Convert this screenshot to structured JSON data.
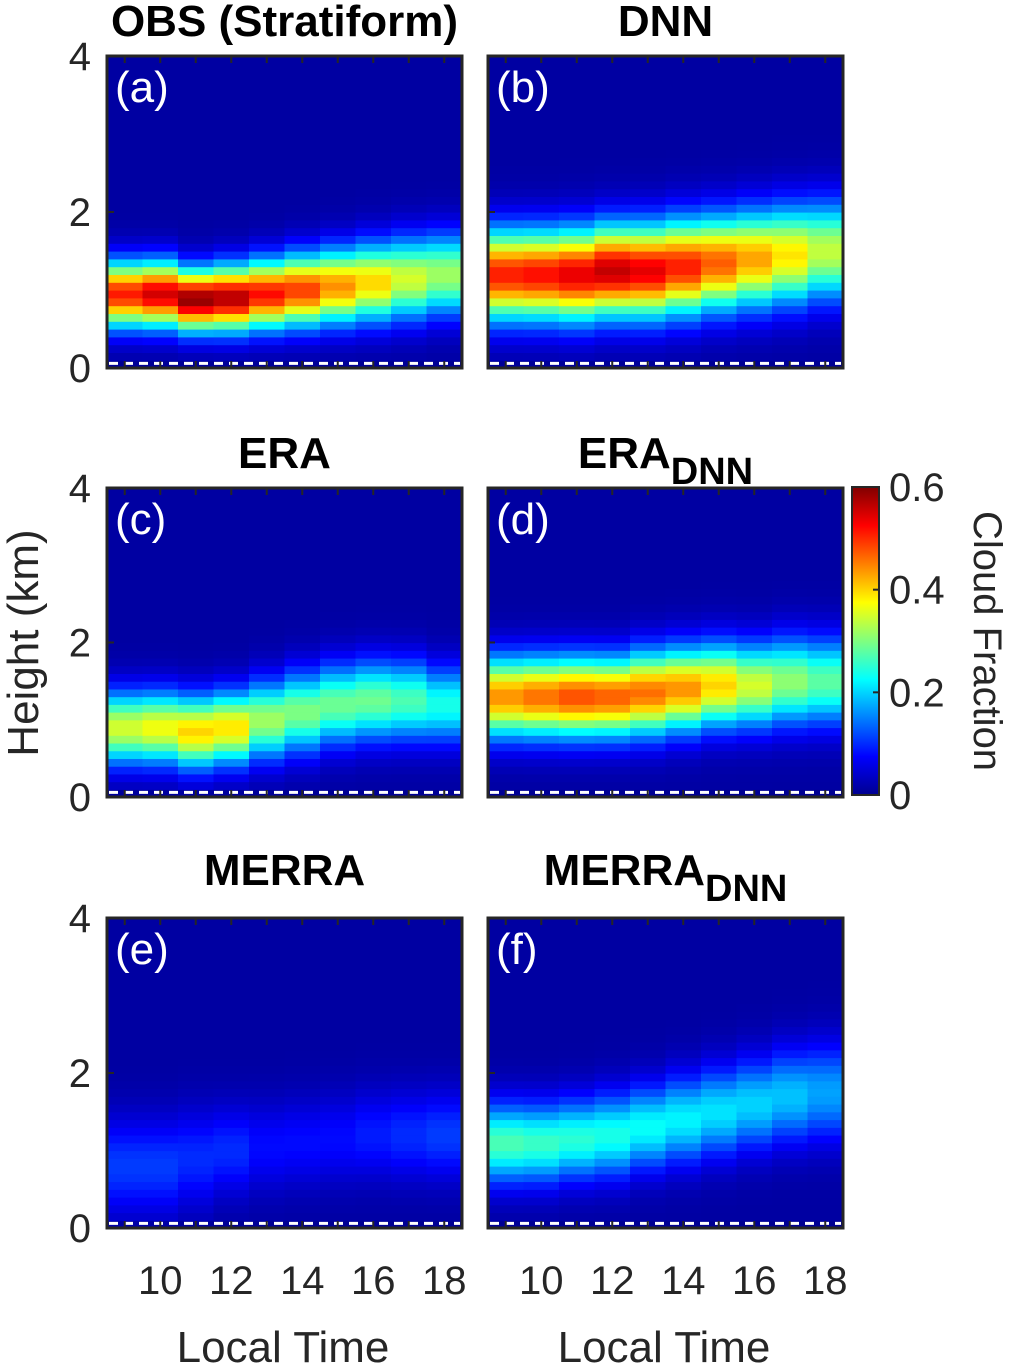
{
  "chart_data": {
    "type": "heatmap",
    "x": [
      9,
      10,
      11,
      12,
      13,
      14,
      15,
      16,
      17,
      18
    ],
    "y_range": [
      0,
      4
    ],
    "y_ticks": [
      "0",
      "2",
      "4"
    ],
    "x_ticks": [
      "10",
      "12",
      "14",
      "16",
      "18"
    ],
    "ylabel": "Height (km)",
    "xlabel": "Local Time",
    "colorbar": {
      "label": "Cloud Fraction",
      "range": [
        0,
        0.6
      ],
      "ticks": [
        "0",
        "0.2",
        "0.4",
        "0.6"
      ],
      "colormap": "jet"
    },
    "panels": [
      {
        "id": "a",
        "label": "(a)",
        "title": "OBS (Stratiform)",
        "title_sub": "",
        "center": [
          0.95,
          0.95,
          0.88,
          0.9,
          0.95,
          1.0,
          1.05,
          1.1,
          1.15,
          1.2
        ],
        "peak": [
          0.49,
          0.53,
          0.57,
          0.55,
          0.5,
          0.47,
          0.42,
          0.38,
          0.33,
          0.3
        ],
        "width": [
          0.4,
          0.4,
          0.38,
          0.4,
          0.42,
          0.44,
          0.46,
          0.48,
          0.5,
          0.5
        ]
      },
      {
        "id": "b",
        "label": "(b)",
        "title": "DNN",
        "title_sub": "",
        "center": [
          1.2,
          1.2,
          1.2,
          1.25,
          1.25,
          1.3,
          1.35,
          1.4,
          1.45,
          1.5
        ],
        "peak": [
          0.49,
          0.5,
          0.52,
          0.54,
          0.52,
          0.49,
          0.45,
          0.41,
          0.37,
          0.32
        ],
        "width": [
          0.55,
          0.55,
          0.56,
          0.56,
          0.57,
          0.58,
          0.58,
          0.59,
          0.6,
          0.6
        ]
      },
      {
        "id": "c",
        "label": "(c)",
        "title": "ERA",
        "title_sub": "",
        "center": [
          0.9,
          0.9,
          0.85,
          0.9,
          1.0,
          1.1,
          1.2,
          1.25,
          1.25,
          1.2
        ],
        "peak": [
          0.33,
          0.35,
          0.38,
          0.37,
          0.3,
          0.28,
          0.27,
          0.27,
          0.25,
          0.22
        ],
        "width": [
          0.45,
          0.45,
          0.45,
          0.45,
          0.48,
          0.5,
          0.5,
          0.5,
          0.5,
          0.48
        ]
      },
      {
        "id": "d",
        "label": "(d)",
        "title": "ERA",
        "title_sub": "DNN",
        "center": [
          1.3,
          1.3,
          1.3,
          1.3,
          1.35,
          1.4,
          1.45,
          1.45,
          1.5,
          1.5
        ],
        "peak": [
          0.42,
          0.44,
          0.46,
          0.45,
          0.44,
          0.42,
          0.38,
          0.33,
          0.29,
          0.26
        ],
        "width": [
          0.5,
          0.5,
          0.5,
          0.5,
          0.52,
          0.52,
          0.52,
          0.52,
          0.54,
          0.54
        ]
      },
      {
        "id": "e",
        "label": "(e)",
        "title": "MERRA",
        "title_sub": "",
        "center": [
          0.8,
          0.8,
          0.9,
          1.0,
          1.05,
          1.1,
          1.15,
          1.2,
          1.2,
          1.2
        ],
        "peak": [
          0.09,
          0.09,
          0.08,
          0.08,
          0.06,
          0.06,
          0.06,
          0.07,
          0.08,
          0.09
        ],
        "width": [
          0.6,
          0.6,
          0.6,
          0.55,
          0.55,
          0.55,
          0.55,
          0.55,
          0.55,
          0.55
        ]
      },
      {
        "id": "f",
        "label": "(f)",
        "title": "MERRA",
        "title_sub": "DNN",
        "center": [
          1.1,
          1.1,
          1.15,
          1.2,
          1.3,
          1.4,
          1.5,
          1.6,
          1.7,
          1.75
        ],
        "peak": [
          0.25,
          0.24,
          0.23,
          0.22,
          0.21,
          0.2,
          0.19,
          0.18,
          0.17,
          0.15
        ],
        "width": [
          0.5,
          0.5,
          0.5,
          0.52,
          0.52,
          0.54,
          0.55,
          0.56,
          0.58,
          0.6
        ]
      }
    ]
  }
}
